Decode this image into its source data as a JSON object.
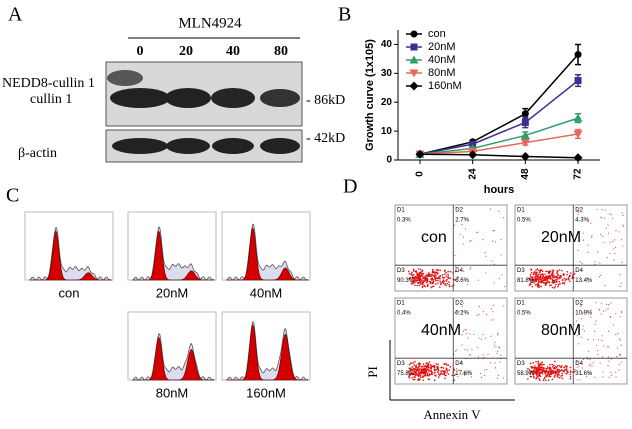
{
  "panel_labels": [
    "A",
    "B",
    "C",
    "D"
  ],
  "western_blot": {
    "treatment": "MLN4924",
    "doses": [
      "0",
      "20",
      "40",
      "80"
    ],
    "bands": [
      "NEDD8-cullin 1",
      "cullin 1",
      "β-actin"
    ],
    "markers": [
      "86kD",
      "42kD"
    ]
  },
  "chart_data": {
    "type": "line",
    "ylabel": "Growth curve (1x105)",
    "xlabel": "hours",
    "x": [
      0,
      24,
      48,
      72
    ],
    "xlim": [
      -10,
      82
    ],
    "xticks": [
      0,
      24,
      48,
      72
    ],
    "ylim": [
      0,
      45
    ],
    "yticks": [
      0,
      10,
      20,
      30,
      40
    ],
    "legend": "upper left",
    "series": [
      {
        "name": "con",
        "color": "#000000",
        "marker": "circle",
        "values": [
          2,
          6.3,
          16,
          36.5
        ],
        "errors": [
          0.3,
          0.6,
          1.8,
          3.5
        ]
      },
      {
        "name": "20nM",
        "color": "#3b2f8f",
        "marker": "square",
        "values": [
          2,
          5.5,
          13,
          27.5
        ],
        "errors": [
          0.3,
          0.5,
          1.8,
          2
        ]
      },
      {
        "name": "40nM",
        "color": "#2e9e6b",
        "marker": "triangle",
        "values": [
          2,
          4,
          8.5,
          14.5
        ],
        "errors": [
          0.3,
          0.4,
          1.2,
          1.5
        ]
      },
      {
        "name": "80nM",
        "color": "#e8675a",
        "marker": "triangle-down",
        "values": [
          2,
          3,
          6,
          9
        ],
        "errors": [
          0.3,
          0.3,
          0.8,
          1.5
        ]
      },
      {
        "name": "160nM",
        "color": "#000000",
        "marker": "diamond",
        "values": [
          2,
          1.8,
          1.2,
          0.8
        ],
        "errors": [
          0.2,
          0.2,
          0.2,
          0.2
        ]
      }
    ]
  },
  "cell_cycle": {
    "labels": [
      "con",
      "20nM",
      "40nM",
      "80nM",
      "160nM"
    ]
  },
  "flow_cytometry": {
    "xlabel": "Annexin V",
    "ylabel": "PI",
    "quadrant_names": [
      "D1",
      "D2",
      "D3",
      "D4"
    ],
    "panels": [
      {
        "label": "con",
        "quadrants": [
          "0.3%",
          "2.7%",
          "90.3%",
          "6.6%"
        ]
      },
      {
        "label": "20nM",
        "quadrants": [
          "0.5%",
          "4.3%",
          "81.8%",
          "13.4%"
        ]
      },
      {
        "label": "40nM",
        "quadrants": [
          "0.4%",
          "6.2%",
          "75.8%",
          "17.6%"
        ]
      },
      {
        "label": "80nM",
        "quadrants": [
          "0.5%",
          "10.9%",
          "58.9%",
          "31.6%"
        ]
      }
    ]
  }
}
